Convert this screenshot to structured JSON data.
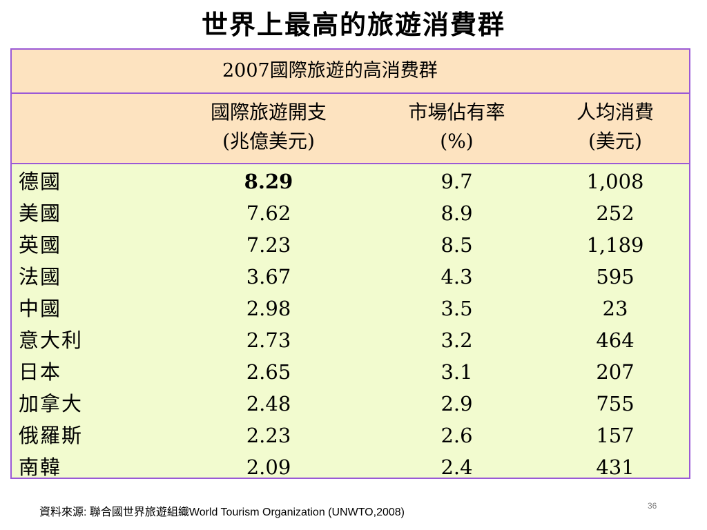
{
  "slide": {
    "title": "世界上最高的旅遊消費群",
    "page_number": "36"
  },
  "table": {
    "caption": "2007國際旅遊的高消费群",
    "headers": [
      {
        "line1": "",
        "line2": ""
      },
      {
        "line1": "國際旅遊開支",
        "line2": "(兆億美元)"
      },
      {
        "line1": "市場佔有率",
        "line2": "(%)"
      },
      {
        "line1": "人均消費",
        "line2": "(美元)"
      }
    ],
    "rows": [
      {
        "country": "德國",
        "spending": "8.29",
        "share": "9.7",
        "per_capita": "1,008"
      },
      {
        "country": "美國",
        "spending": "7.62",
        "share": "8.9",
        "per_capita": "252"
      },
      {
        "country": "英國",
        "spending": "7.23",
        "share": "8.5",
        "per_capita": "1,189"
      },
      {
        "country": "法國",
        "spending": "3.67",
        "share": "4.3",
        "per_capita": "595"
      },
      {
        "country": "中國",
        "spending": "2.98",
        "share": "3.5",
        "per_capita": "23"
      },
      {
        "country": "意大利",
        "spending": "2.73",
        "share": "3.2",
        "per_capita": "464"
      },
      {
        "country": "日本",
        "spending": "2.65",
        "share": "3.1",
        "per_capita": "207"
      },
      {
        "country": "加拿大",
        "spending": "2.48",
        "share": "2.9",
        "per_capita": "755"
      },
      {
        "country": "俄羅斯",
        "spending": "2.23",
        "share": "2.6",
        "per_capita": "157"
      },
      {
        "country": "南韓",
        "spending": "2.09",
        "share": "2.4",
        "per_capita": "431"
      }
    ],
    "colors": {
      "header_background": "#fde3c0",
      "body_background": "#f2fbcf",
      "border": "#9b59d6"
    }
  },
  "footer": {
    "source": "資料來源: 聯合國世界旅遊組織World Tourism Organization (UNWTO,2008)"
  }
}
